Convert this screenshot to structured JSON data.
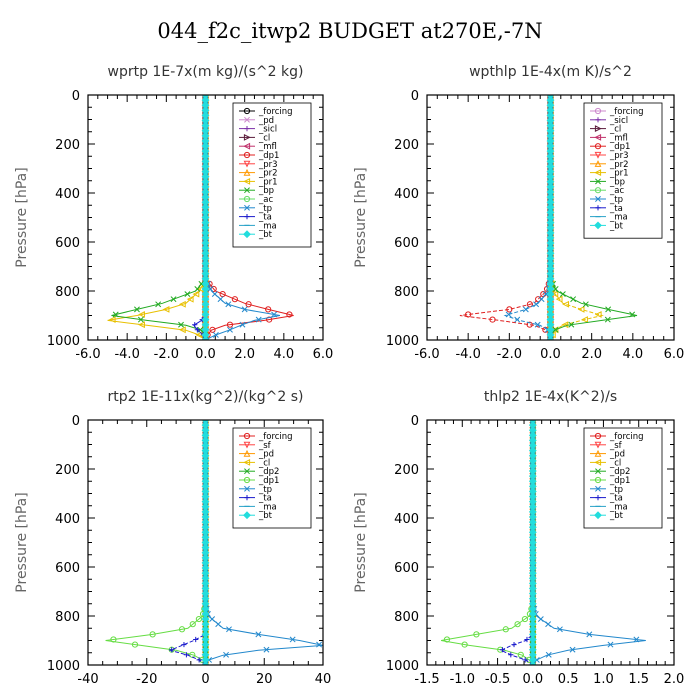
{
  "suptitle": "044_f2c_itwp2  BUDGET at270E,-7N",
  "chart_data": [
    {
      "type": "line",
      "title": "wprtp  1E-7x(m kg)/(s^2 kg)",
      "ylabel": "Pressure [hPa]",
      "xlim": [
        -6,
        6
      ],
      "ylim": [
        1000,
        0
      ],
      "xticks": [
        "-6.0",
        "-4.0",
        "-2.0",
        "0.0",
        "2.0",
        "4.0",
        "6.0"
      ],
      "yticks": [
        "0",
        "200",
        "400",
        "600",
        "800",
        "1000"
      ],
      "legend_position": "top-right",
      "y": [
        0,
        750,
        800,
        850,
        875,
        900,
        920,
        940,
        960,
        980,
        1000
      ],
      "series": [
        {
          "name": "_forcing",
          "color": "#000000",
          "marker": "o",
          "values": [
            0,
            0,
            0,
            0,
            0,
            0,
            0,
            0,
            0,
            0,
            0
          ]
        },
        {
          "name": "_pd",
          "color": "#cc88cc",
          "marker": "x",
          "values": [
            0,
            0,
            0,
            0,
            0,
            0,
            0,
            0,
            0,
            0,
            0
          ]
        },
        {
          "name": "_sicl",
          "color": "#7b2fa8",
          "marker": "+",
          "values": [
            0,
            0,
            0,
            0,
            0,
            0,
            0,
            0,
            0,
            0,
            0
          ]
        },
        {
          "name": "_cl",
          "color": "#5a1a3a",
          "marker": ">",
          "values": [
            0,
            0,
            0,
            0,
            0,
            0,
            0,
            0,
            0,
            0,
            0
          ]
        },
        {
          "name": "_mfl",
          "color": "#c0306a",
          "marker": "<",
          "values": [
            0,
            0,
            0,
            0,
            0,
            0,
            0,
            0,
            0,
            0,
            0
          ]
        },
        {
          "name": "_dp1",
          "color": "#e02020",
          "marker": "o",
          "values": [
            0,
            0,
            0.5,
            2.0,
            3.2,
            4.5,
            3.0,
            1.0,
            0.3,
            0.1,
            0
          ]
        },
        {
          "name": "_pr3",
          "color": "#ff4444",
          "marker": "v",
          "values": [
            0,
            0,
            0,
            0,
            0,
            0,
            0,
            0,
            0,
            0,
            0
          ]
        },
        {
          "name": "_pr2",
          "color": "#ff9900",
          "marker": "^",
          "values": [
            0,
            0,
            0,
            0,
            0,
            0,
            0,
            0,
            0,
            0,
            0
          ]
        },
        {
          "name": "_pr1",
          "color": "#e8c000",
          "marker": "<",
          "values": [
            0,
            0,
            -0.3,
            -1.0,
            -2.0,
            -3.5,
            -5.0,
            -3.0,
            -1.0,
            -0.3,
            0
          ]
        },
        {
          "name": "_bp",
          "color": "#22aa22",
          "marker": "x",
          "values": [
            0,
            0,
            -0.5,
            -2.2,
            -3.5,
            -4.8,
            -3.0,
            -1.0,
            -0.2,
            0,
            0
          ]
        },
        {
          "name": "_ac",
          "color": "#66dd66",
          "marker": "o",
          "values": [
            0,
            0,
            0,
            0,
            0,
            0,
            0,
            0,
            0,
            0,
            0
          ]
        },
        {
          "name": "_tp",
          "color": "#2288cc",
          "marker": "x",
          "values": [
            0,
            0,
            0.3,
            1.0,
            2.0,
            3.8,
            2.5,
            1.8,
            1.2,
            0.5,
            0
          ]
        },
        {
          "name": "_ta",
          "color": "#1a1acc",
          "marker": "+",
          "values": [
            0,
            0,
            0,
            0,
            0,
            0,
            -0.2,
            -0.6,
            -0.4,
            -0.1,
            0
          ]
        },
        {
          "name": "_ma",
          "color": "#2aa3c8",
          "marker": "-",
          "values": [
            0,
            0,
            0,
            0,
            0,
            0,
            0,
            0,
            0,
            0,
            0
          ]
        },
        {
          "name": "_bt",
          "color": "#22dddd",
          "marker": "D",
          "values": [
            0,
            0,
            0,
            0,
            0,
            0,
            0,
            0,
            0,
            0,
            0
          ]
        }
      ]
    },
    {
      "type": "line",
      "title": "wpthlp  1E-4x(m K)/s^2",
      "ylabel": "Pressure [hPa]",
      "xlim": [
        -6,
        6
      ],
      "ylim": [
        1000,
        0
      ],
      "xticks": [
        "-6.0",
        "-4.0",
        "-2.0",
        "0.0",
        "2.0",
        "4.0",
        "6.0"
      ],
      "yticks": [
        "0",
        "200",
        "400",
        "600",
        "800",
        "1000"
      ],
      "legend_position": "top-right",
      "y": [
        0,
        750,
        800,
        850,
        875,
        900,
        920,
        940,
        960,
        980,
        1000
      ],
      "series": [
        {
          "name": "_forcing",
          "color": "#cc88cc",
          "marker": "o",
          "values": [
            0,
            0,
            0,
            0,
            0,
            0,
            0,
            0,
            0,
            0,
            0
          ]
        },
        {
          "name": "_sicl",
          "color": "#7b2fa8",
          "marker": "+",
          "values": [
            0,
            0,
            0,
            0,
            0,
            0,
            0,
            0,
            0,
            0,
            0
          ]
        },
        {
          "name": "_cl",
          "color": "#5a1a3a",
          "marker": ">",
          "values": [
            0,
            0,
            0,
            0,
            0,
            0,
            0,
            0,
            0,
            0,
            0
          ]
        },
        {
          "name": "_mfl",
          "color": "#c0306a",
          "marker": "<",
          "values": [
            0,
            0,
            0,
            0,
            0,
            0,
            0,
            0,
            0,
            0,
            0
          ]
        },
        {
          "name": "_dp1",
          "color": "#e02020",
          "marker": "o",
          "values": [
            0,
            0,
            -0.2,
            -0.8,
            -2.0,
            -4.4,
            -2.5,
            -0.8,
            -0.2,
            0,
            0
          ]
        },
        {
          "name": "_pr3",
          "color": "#ff4444",
          "marker": "v",
          "values": [
            0,
            0,
            0,
            0,
            0,
            0,
            0,
            0,
            0,
            0,
            0
          ]
        },
        {
          "name": "_pr2",
          "color": "#ff9900",
          "marker": "^",
          "values": [
            0,
            0,
            0,
            0,
            0,
            0,
            0,
            0,
            0,
            0,
            0
          ]
        },
        {
          "name": "_pr1",
          "color": "#e8c000",
          "marker": "<",
          "values": [
            0,
            0,
            0.1,
            0.6,
            1.5,
            2.5,
            1.5,
            0.6,
            0.2,
            0.1,
            0
          ]
        },
        {
          "name": "_bp",
          "color": "#22aa22",
          "marker": "x",
          "values": [
            0,
            0,
            0.3,
            1.5,
            2.8,
            4.2,
            2.5,
            0.8,
            0.2,
            0,
            0
          ]
        },
        {
          "name": "_ac",
          "color": "#66dd66",
          "marker": "o",
          "values": [
            0,
            0,
            0,
            0,
            0,
            0,
            0,
            0,
            0,
            0,
            0
          ]
        },
        {
          "name": "_tp",
          "color": "#2288cc",
          "marker": "x",
          "values": [
            0,
            0,
            -0.1,
            -0.6,
            -1.2,
            -2.2,
            -1.5,
            -0.5,
            -0.1,
            0,
            0
          ]
        },
        {
          "name": "_ta",
          "color": "#1a1acc",
          "marker": "+",
          "values": [
            0,
            0,
            0,
            0,
            0,
            0,
            0,
            0,
            0,
            0,
            0
          ]
        },
        {
          "name": "_ma",
          "color": "#2aa3c8",
          "marker": "-",
          "values": [
            0,
            0,
            0,
            0,
            0,
            0,
            0,
            0,
            0,
            0,
            0
          ]
        },
        {
          "name": "_bt",
          "color": "#22dddd",
          "marker": "D",
          "values": [
            0,
            0,
            0,
            0,
            0,
            0,
            0,
            0,
            0,
            0,
            0
          ]
        }
      ]
    },
    {
      "type": "line",
      "title": "rtp2  1E-11x(kg^2)/(kg^2 s)",
      "ylabel": "Pressure [hPa]",
      "xlim": [
        -40,
        40
      ],
      "ylim": [
        1000,
        0
      ],
      "xticks": [
        "-40",
        "-20",
        "0",
        "20",
        "40"
      ],
      "yticks": [
        "0",
        "200",
        "400",
        "600",
        "800",
        "1000"
      ],
      "legend_position": "top-right",
      "y": [
        0,
        750,
        800,
        850,
        875,
        900,
        920,
        940,
        960,
        980,
        1000
      ],
      "series": [
        {
          "name": "_forcing",
          "color": "#e02020",
          "marker": "o",
          "values": [
            0,
            0,
            0,
            0,
            0,
            0,
            0,
            0,
            0,
            0,
            0
          ]
        },
        {
          "name": "_sf",
          "color": "#ff4444",
          "marker": "v",
          "values": [
            0,
            0,
            0,
            0,
            0,
            0,
            0,
            0,
            0,
            0,
            0
          ]
        },
        {
          "name": "_pd",
          "color": "#ff9900",
          "marker": "^",
          "values": [
            0,
            0,
            0,
            0,
            0,
            0,
            0,
            0,
            0,
            0,
            0
          ]
        },
        {
          "name": "_cl",
          "color": "#e8c000",
          "marker": "<",
          "values": [
            0,
            0,
            0,
            0,
            0,
            0,
            0,
            0,
            0,
            0,
            0
          ]
        },
        {
          "name": "_dp2",
          "color": "#22aa22",
          "marker": "x",
          "values": [
            0,
            0,
            0,
            0,
            0,
            0,
            0,
            0,
            0,
            0,
            0
          ]
        },
        {
          "name": "_dp1",
          "color": "#66dd44",
          "marker": "o",
          "values": [
            0,
            0,
            -1,
            -6,
            -18,
            -34,
            -22,
            -10,
            -4,
            -1,
            0
          ]
        },
        {
          "name": "_tp",
          "color": "#2288cc",
          "marker": "x",
          "values": [
            0,
            0,
            1,
            6,
            18,
            32,
            40,
            18,
            6,
            1,
            0
          ]
        },
        {
          "name": "_ta",
          "color": "#1a1acc",
          "marker": "+",
          "values": [
            0,
            0,
            0,
            0,
            0,
            -4,
            -8,
            -12,
            -6,
            -2,
            0
          ]
        },
        {
          "name": "_ma",
          "color": "#2aa3c8",
          "marker": "-",
          "values": [
            0,
            0,
            0,
            0,
            0,
            0,
            0,
            0,
            0,
            0,
            0
          ]
        },
        {
          "name": "_bt",
          "color": "#22dddd",
          "marker": "D",
          "values": [
            0,
            0,
            0,
            0,
            0,
            0,
            0,
            0,
            0,
            0,
            0
          ]
        }
      ]
    },
    {
      "type": "line",
      "title": "thlp2  1E-4x(K^2)/s",
      "ylabel": "Pressure [hPa]",
      "xlim": [
        -1.5,
        2.0
      ],
      "ylim": [
        1000,
        0
      ],
      "xticks": [
        "-1.5",
        "-1.0",
        "-0.5",
        "0.0",
        "0.5",
        "1.0",
        "1.5",
        "2.0"
      ],
      "yticks": [
        "0",
        "200",
        "400",
        "600",
        "800",
        "1000"
      ],
      "legend_position": "top-right",
      "y": [
        0,
        750,
        800,
        850,
        875,
        900,
        920,
        940,
        960,
        980,
        1000
      ],
      "series": [
        {
          "name": "_forcing",
          "color": "#e02020",
          "marker": "o",
          "values": [
            0,
            0,
            0,
            0,
            0,
            0,
            0,
            0,
            0,
            0,
            0
          ]
        },
        {
          "name": "_sf",
          "color": "#ff4444",
          "marker": "v",
          "values": [
            0,
            0,
            0,
            0,
            0,
            0,
            0,
            0,
            0,
            0,
            0
          ]
        },
        {
          "name": "_pd",
          "color": "#ff9900",
          "marker": "^",
          "values": [
            0,
            0,
            0,
            0,
            0,
            0,
            0,
            0,
            0,
            0,
            0
          ]
        },
        {
          "name": "_cl",
          "color": "#e8c000",
          "marker": "<",
          "values": [
            0,
            0,
            0,
            0,
            0,
            0,
            0,
            0,
            0,
            0,
            0
          ]
        },
        {
          "name": "_dp2",
          "color": "#22aa22",
          "marker": "x",
          "values": [
            0,
            0,
            0,
            0,
            0,
            0,
            0,
            0,
            0,
            0,
            0
          ]
        },
        {
          "name": "_dp1",
          "color": "#66dd44",
          "marker": "o",
          "values": [
            0,
            0,
            -0.05,
            -0.3,
            -0.8,
            -1.3,
            -0.9,
            -0.4,
            -0.15,
            -0.05,
            0
          ]
        },
        {
          "name": "_tp",
          "color": "#2288cc",
          "marker": "x",
          "values": [
            0,
            0,
            0.05,
            0.3,
            0.8,
            1.6,
            1.0,
            0.5,
            0.2,
            0.05,
            0
          ]
        },
        {
          "name": "_ta",
          "color": "#1a1acc",
          "marker": "+",
          "values": [
            0,
            0,
            0,
            0,
            0,
            -0.1,
            -0.3,
            -0.45,
            -0.3,
            -0.1,
            0
          ]
        },
        {
          "name": "_ma",
          "color": "#2aa3c8",
          "marker": "-",
          "values": [
            0,
            0,
            0,
            0,
            0,
            0,
            0,
            0,
            0,
            0,
            0
          ]
        },
        {
          "name": "_bt",
          "color": "#22dddd",
          "marker": "D",
          "values": [
            0,
            0,
            0,
            0,
            0,
            0,
            0,
            0,
            0,
            0,
            0
          ]
        }
      ]
    }
  ]
}
